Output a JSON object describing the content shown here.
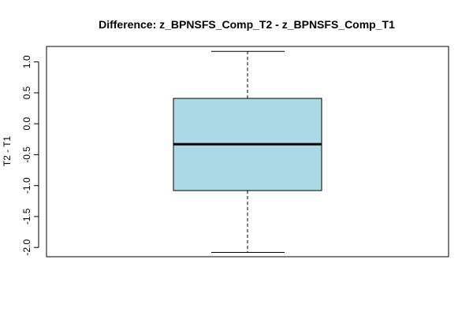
{
  "chart_data": {
    "type": "boxplot",
    "title": "Difference: z_BPNSFS_Comp_T2 - z_BPNSFS_Comp_T1",
    "xlabel": "",
    "ylabel": "T2 - T1",
    "ylim": [
      -2.15,
      1.25
    ],
    "yticks": [
      -2.0,
      -1.5,
      -1.0,
      -0.5,
      0.0,
      0.5,
      1.0
    ],
    "ytick_labels": [
      "-2.0",
      "-1.5",
      "-1.0",
      "-0.5",
      "0.0",
      "0.5",
      "1.0"
    ],
    "box": {
      "min": -2.08,
      "q1": -1.08,
      "median": -0.33,
      "q3": 0.41,
      "max": 1.17
    },
    "box_color": "#add8e6",
    "grid": false
  }
}
